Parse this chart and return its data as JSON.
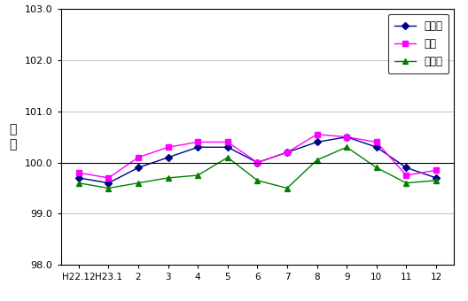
{
  "x_labels": [
    "H22.12",
    "H23.1",
    "2",
    "3",
    "4",
    "5",
    "6",
    "7",
    "8",
    "9",
    "10",
    "11",
    "12"
  ],
  "mie": [
    99.7,
    99.6,
    99.9,
    100.1,
    100.3,
    100.3,
    100.0,
    100.2,
    100.4,
    100.5,
    100.3,
    99.9,
    99.7
  ],
  "tsu": [
    99.8,
    99.7,
    100.1,
    100.3,
    100.4,
    100.4,
    100.0,
    100.2,
    100.55,
    100.5,
    100.4,
    99.75,
    99.85
  ],
  "matsusaka": [
    99.6,
    99.5,
    99.6,
    99.7,
    99.75,
    100.1,
    99.65,
    99.5,
    100.05,
    100.3,
    99.9,
    99.6,
    99.65
  ],
  "mie_color": "#00008B",
  "tsu_color": "#FF00FF",
  "matsusaka_color": "#008000",
  "ylim": [
    98.0,
    103.0
  ],
  "yticks": [
    98.0,
    99.0,
    100.0,
    101.0,
    102.0,
    103.0
  ],
  "ylabel": "指\n数",
  "legend_labels": [
    "三重県",
    "津市",
    "松阪市"
  ],
  "hline_y": 100.0,
  "background_color": "#ffffff",
  "plot_bg_color": "#ffffff"
}
